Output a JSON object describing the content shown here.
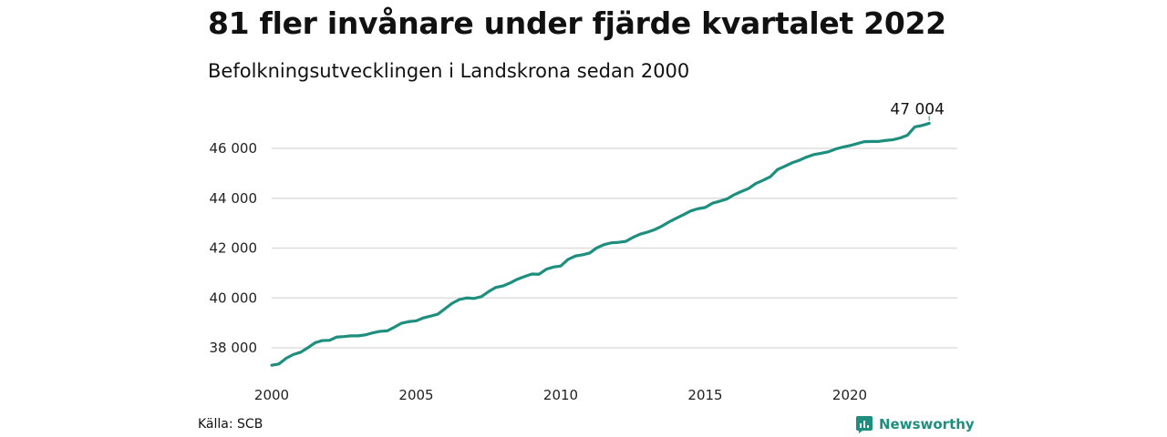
{
  "title": "81 fler invånare under fjärde kvartalet 2022",
  "subtitle": "Befolkningsutvecklingen i Landskrona sedan 2000",
  "source": "Källa: SCB",
  "brand": "Newsworthy",
  "colors": {
    "line": "#1e8f7e",
    "grid": "#dddddd",
    "brand": "#1e8f7e"
  },
  "chart_data": {
    "type": "line",
    "title": "81 fler invånare under fjärde kvartalet 2022",
    "subtitle": "Befolkningsutvecklingen i Landskrona sedan 2000",
    "xlim": [
      2000,
      2023
    ],
    "ylim": [
      37000,
      47000
    ],
    "xticks": [
      2000,
      2005,
      2010,
      2015,
      2020
    ],
    "xtick_labels": [
      "2000",
      "2005",
      "2010",
      "2015",
      "2020"
    ],
    "yticks": [
      38000,
      40000,
      42000,
      44000,
      46000
    ],
    "ytick_labels": [
      "38 000",
      "40 000",
      "42 000",
      "44 000",
      "46 000"
    ],
    "grid": "horizontal",
    "end_label": "47 004",
    "series": [
      {
        "x": [
          2000.0,
          2000.25,
          2000.5,
          2000.75,
          2001.0,
          2001.25,
          2001.5,
          2001.75,
          2002.0,
          2002.25,
          2002.5,
          2002.75,
          2003.0,
          2003.25,
          2003.5,
          2003.75,
          2004.0,
          2004.25,
          2004.5,
          2004.75,
          2005.0,
          2005.25,
          2005.5,
          2005.75,
          2006.0,
          2006.25,
          2006.5,
          2006.75,
          2007.0,
          2007.25,
          2007.5,
          2007.75,
          2008.0,
          2008.25,
          2008.5,
          2008.75,
          2009.0,
          2009.25,
          2009.5,
          2009.75,
          2010.0,
          2010.25,
          2010.5,
          2010.75,
          2011.0,
          2011.25,
          2011.5,
          2011.75,
          2012.0,
          2012.25,
          2012.5,
          2012.75,
          2013.0,
          2013.25,
          2013.5,
          2013.75,
          2014.0,
          2014.25,
          2014.5,
          2014.75,
          2015.0,
          2015.25,
          2015.5,
          2015.75,
          2016.0,
          2016.25,
          2016.5,
          2016.75,
          2017.0,
          2017.25,
          2017.5,
          2017.75,
          2018.0,
          2018.25,
          2018.5,
          2018.75,
          2019.0,
          2019.25,
          2019.5,
          2019.75,
          2020.0,
          2020.25,
          2020.5,
          2020.75,
          2021.0,
          2021.25,
          2021.5,
          2021.75,
          2022.0,
          2022.25,
          2022.5,
          2022.75
        ],
        "y": [
          37300,
          37350,
          37580,
          37730,
          37820,
          38000,
          38200,
          38290,
          38300,
          38430,
          38450,
          38480,
          38480,
          38520,
          38600,
          38660,
          38680,
          38830,
          38990,
          39050,
          39080,
          39200,
          39270,
          39350,
          39570,
          39790,
          39940,
          40000,
          39980,
          40050,
          40250,
          40420,
          40480,
          40600,
          40750,
          40860,
          40960,
          40950,
          41150,
          41240,
          41280,
          41540,
          41680,
          41730,
          41800,
          42010,
          42140,
          42210,
          42230,
          42270,
          42430,
          42560,
          42640,
          42740,
          42880,
          43050,
          43200,
          43340,
          43490,
          43580,
          43630,
          43800,
          43880,
          43970,
          44140,
          44270,
          44390,
          44590,
          44720,
          44860,
          45150,
          45280,
          45420,
          45520,
          45650,
          45750,
          45800,
          45860,
          45970,
          46050,
          46110,
          46190,
          46270,
          46280,
          46280,
          46320,
          46350,
          46420,
          46530,
          46860,
          46920,
          47004
        ]
      }
    ]
  }
}
